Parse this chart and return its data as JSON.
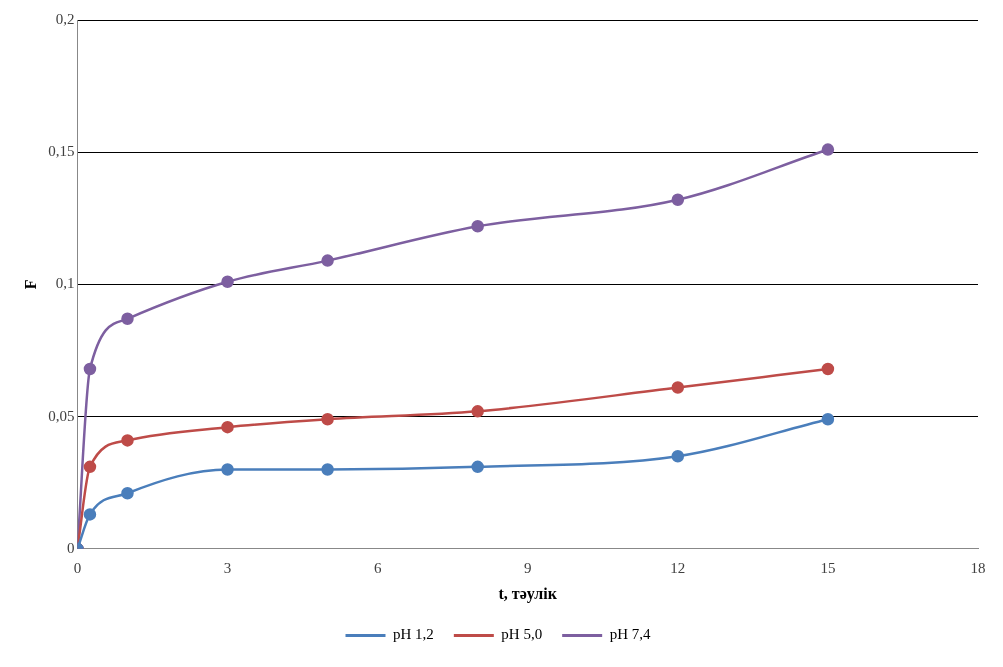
{
  "chart_data": {
    "type": "line",
    "xlabel": "t, тәулік",
    "ylabel": "F",
    "xlim": [
      0,
      18
    ],
    "xticks": [
      0,
      3,
      6,
      9,
      12,
      15,
      18
    ],
    "ylim": [
      0,
      0.2
    ],
    "yticks": [
      0,
      {
        "value": 0.05,
        "label": "0,05"
      },
      {
        "value": 0.1,
        "label": "0,1"
      },
      {
        "value": 0.15,
        "label": "0,15"
      },
      {
        "value": 0.2,
        "label": "0,2"
      }
    ],
    "grid": "y",
    "legend": "bottom",
    "marker": "circle",
    "line_style": "solid",
    "x": [
      0,
      0.25,
      1,
      3,
      5,
      8,
      12,
      15
    ],
    "series": [
      {
        "name": "pH 1,2",
        "color": "#4a7ebb",
        "values": [
          0,
          0.013,
          0.021,
          0.03,
          0.03,
          0.031,
          0.035,
          0.049
        ]
      },
      {
        "name": "pH 5,0",
        "color": "#be4b48",
        "values": [
          0,
          0.031,
          0.041,
          0.046,
          0.049,
          0.052,
          0.061,
          0.068
        ]
      },
      {
        "name": "pH 7,4",
        "color": "#7d5fa0",
        "values": [
          0,
          0.068,
          0.087,
          0.101,
          0.109,
          0.122,
          0.132,
          0.151
        ]
      }
    ]
  }
}
